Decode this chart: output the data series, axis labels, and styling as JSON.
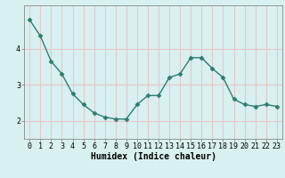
{
  "x": [
    0,
    1,
    2,
    3,
    4,
    5,
    6,
    7,
    8,
    9,
    10,
    11,
    12,
    13,
    14,
    15,
    16,
    17,
    18,
    19,
    20,
    21,
    22,
    23
  ],
  "y": [
    4.8,
    4.35,
    3.65,
    3.3,
    2.75,
    2.45,
    2.22,
    2.1,
    2.05,
    2.05,
    2.45,
    2.7,
    2.7,
    3.2,
    3.3,
    3.75,
    3.75,
    3.45,
    3.2,
    2.6,
    2.45,
    2.4,
    2.45,
    2.4
  ],
  "line_color": "#2e7d6e",
  "marker": "D",
  "marker_size": 2.5,
  "bg_color": "#d8f0f0",
  "grid_color": "#e8c8c8",
  "xlabel": "Humidex (Indice chaleur)",
  "xlim": [
    -0.5,
    23.5
  ],
  "ylim": [
    1.5,
    5.2
  ],
  "yticks": [
    2,
    3,
    4
  ],
  "xticks": [
    0,
    1,
    2,
    3,
    4,
    5,
    6,
    7,
    8,
    9,
    10,
    11,
    12,
    13,
    14,
    15,
    16,
    17,
    18,
    19,
    20,
    21,
    22,
    23
  ],
  "xlabel_fontsize": 7.0,
  "tick_fontsize": 6.0
}
